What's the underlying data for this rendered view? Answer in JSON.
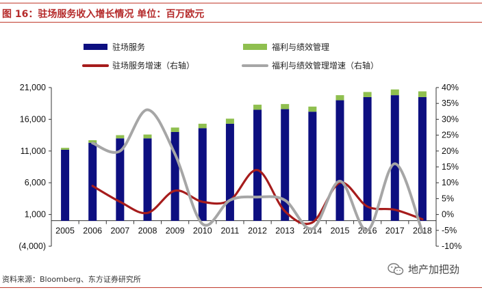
{
  "header": {
    "title": "图 16：驻场服务收入增长情况  单位：百万欧元"
  },
  "footer": {
    "source": "资料来源：Bloomberg、东方证券研究所",
    "watermark_label": "地产加把劲",
    "watermark_icon": "wechat-icon"
  },
  "colors": {
    "accent_red": "#c0392b",
    "bar_main": "#0d0f80",
    "bar_top": "#8fbf4f",
    "line_main": "#a61c1c",
    "line_other": "#a6a6a6"
  },
  "chart_data": {
    "type": "bar",
    "stacked": true,
    "categories": [
      "2005",
      "2006",
      "2007",
      "2008",
      "2009",
      "2010",
      "2011",
      "2012",
      "2013",
      "2014",
      "2015",
      "2016",
      "2017",
      "2018"
    ],
    "series": [
      {
        "name": "驻场服务",
        "type": "bar",
        "axis": "left",
        "values": [
          11200,
          12300,
          13000,
          13000,
          14000,
          14600,
          15300,
          17500,
          17600,
          17200,
          19000,
          19500,
          19800,
          19500
        ]
      },
      {
        "name": "福利与绩效管理",
        "type": "bar",
        "axis": "left",
        "values": [
          300,
          400,
          500,
          600,
          700,
          700,
          800,
          800,
          800,
          800,
          800,
          800,
          900,
          900
        ]
      },
      {
        "name": "驻场服务增速（右轴）",
        "type": "line",
        "axis": "right",
        "values": [
          null,
          9.0,
          4.0,
          0.5,
          7.5,
          4.0,
          4.5,
          14.0,
          1.0,
          -2.5,
          10.0,
          2.5,
          1.5,
          -1.5
        ]
      },
      {
        "name": "福利与绩效管理增速（右轴）",
        "type": "line",
        "axis": "right",
        "values": [
          null,
          22.5,
          20.0,
          33.0,
          19.0,
          -3.0,
          4.5,
          5.5,
          4.5,
          -4.5,
          10.5,
          -5.0,
          16.0,
          -5.5
        ]
      }
    ],
    "y_left": {
      "ticks": [
        -4000,
        1000,
        6000,
        11000,
        16000,
        21000
      ],
      "tick_labels": [
        "(4,000)",
        "1,000",
        "6,000",
        "11,000",
        "16,000",
        "21,000"
      ]
    },
    "y_right": {
      "ticks": [
        -10,
        -5,
        0,
        5,
        10,
        15,
        20,
        25,
        30,
        35,
        40
      ],
      "tick_labels": [
        "-10%",
        "-5%",
        "0%",
        "5%",
        "10%",
        "15%",
        "20%",
        "25%",
        "30%",
        "35%",
        "40%"
      ]
    },
    "legend_position": "top",
    "grid": false
  }
}
